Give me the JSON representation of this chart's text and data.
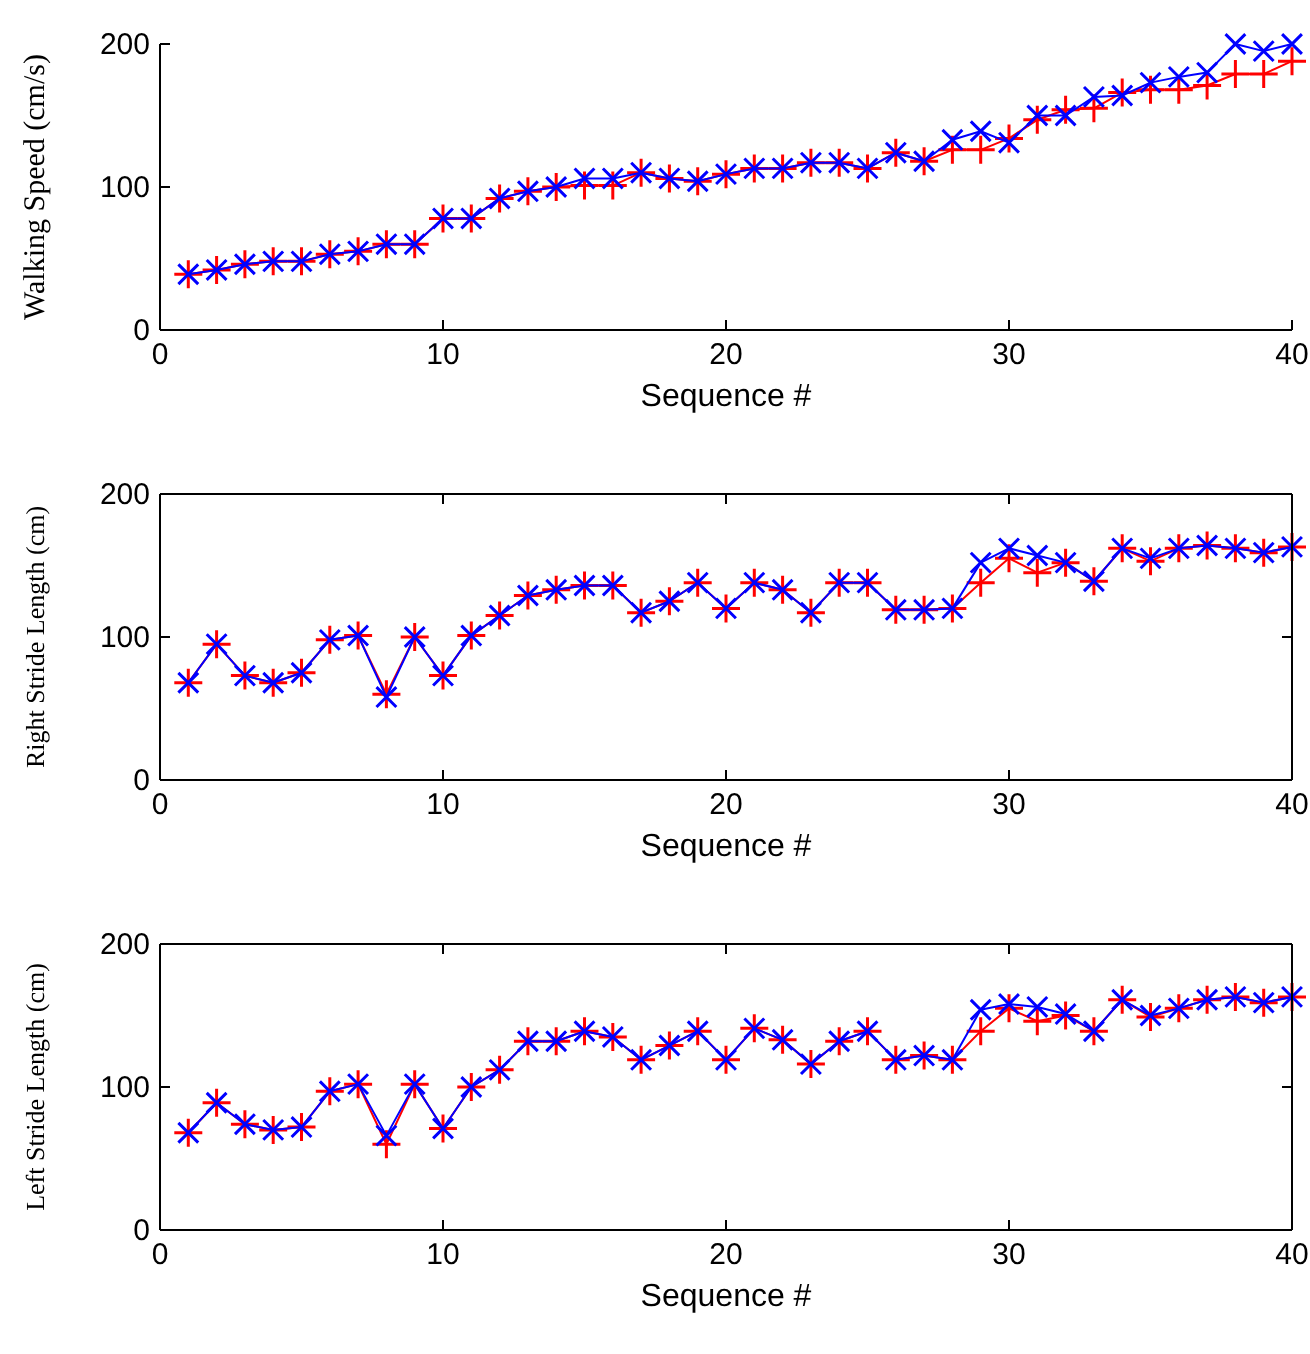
{
  "chart_data": [
    {
      "type": "line",
      "xlabel": "Sequence #",
      "ylabel": "Walking Speed (cm/s)",
      "x": [
        1,
        2,
        3,
        4,
        5,
        6,
        7,
        8,
        9,
        10,
        11,
        12,
        13,
        14,
        15,
        16,
        17,
        18,
        19,
        20,
        21,
        22,
        23,
        24,
        25,
        26,
        27,
        28,
        29,
        30,
        31,
        32,
        33,
        34,
        35,
        36,
        37,
        38,
        39,
        40
      ],
      "xlim": [
        0,
        40
      ],
      "xticks": [
        0,
        10,
        20,
        30,
        40
      ],
      "ylim": [
        0,
        200
      ],
      "yticks": [
        0,
        100,
        200
      ],
      "grid": false,
      "series": [
        {
          "color": "#ff0000",
          "marker": "cross",
          "values": [
            39,
            42,
            46,
            48,
            48,
            53,
            55,
            60,
            60,
            78,
            78,
            92,
            97,
            100,
            101,
            101,
            110,
            106,
            104,
            109,
            113,
            113,
            117,
            117,
            113,
            124,
            118,
            126,
            126,
            134,
            147,
            154,
            155,
            166,
            168,
            168,
            171,
            179,
            179,
            188
          ]
        },
        {
          "color": "#0000ff",
          "marker": "cross",
          "values": [
            39,
            42,
            46,
            48,
            48,
            53,
            55,
            60,
            60,
            78,
            78,
            92,
            97,
            100,
            106,
            106,
            110,
            106,
            104,
            109,
            113,
            113,
            117,
            117,
            113,
            124,
            118,
            133,
            139,
            131,
            150,
            150,
            163,
            164,
            173,
            177,
            180,
            200,
            195,
            200
          ]
        }
      ]
    },
    {
      "type": "line",
      "xlabel": "Sequence #",
      "ylabel": "Right Stride Length (cm)",
      "x": [
        1,
        2,
        3,
        4,
        5,
        6,
        7,
        8,
        9,
        10,
        11,
        12,
        13,
        14,
        15,
        16,
        17,
        18,
        19,
        20,
        21,
        22,
        23,
        24,
        25,
        26,
        27,
        28,
        29,
        30,
        31,
        32,
        33,
        34,
        35,
        36,
        37,
        38,
        39,
        40
      ],
      "xlim": [
        0,
        40
      ],
      "xticks": [
        0,
        10,
        20,
        30,
        40
      ],
      "ylim": [
        0,
        200
      ],
      "yticks": [
        0,
        100,
        200
      ],
      "grid": false,
      "series": [
        {
          "color": "#ff0000",
          "marker": "cross",
          "values": [
            68,
            95,
            73,
            68,
            75,
            98,
            101,
            60,
            100,
            73,
            101,
            115,
            129,
            133,
            136,
            136,
            117,
            125,
            138,
            120,
            138,
            133,
            117,
            138,
            138,
            119,
            119,
            120,
            138,
            155,
            145,
            152,
            139,
            162,
            153,
            162,
            164,
            162,
            159,
            163
          ]
        },
        {
          "color": "#0000ff",
          "marker": "cross",
          "values": [
            68,
            95,
            73,
            68,
            75,
            98,
            101,
            58,
            100,
            73,
            101,
            115,
            129,
            133,
            136,
            136,
            117,
            125,
            138,
            120,
            138,
            133,
            117,
            138,
            138,
            119,
            119,
            120,
            152,
            162,
            157,
            152,
            139,
            162,
            155,
            162,
            164,
            162,
            159,
            163
          ]
        }
      ]
    },
    {
      "type": "line",
      "xlabel": "Sequence #",
      "ylabel": "Left Stride Length (cm)",
      "x": [
        1,
        2,
        3,
        4,
        5,
        6,
        7,
        8,
        9,
        10,
        11,
        12,
        13,
        14,
        15,
        16,
        17,
        18,
        19,
        20,
        21,
        22,
        23,
        24,
        25,
        26,
        27,
        28,
        29,
        30,
        31,
        32,
        33,
        34,
        35,
        36,
        37,
        38,
        39,
        40
      ],
      "xlim": [
        0,
        40
      ],
      "xticks": [
        0,
        10,
        20,
        30,
        40
      ],
      "ylim": [
        0,
        200
      ],
      "yticks": [
        0,
        100,
        200
      ],
      "grid": false,
      "series": [
        {
          "color": "#ff0000",
          "marker": "cross",
          "values": [
            68,
            89,
            74,
            70,
            72,
            97,
            102,
            60,
            102,
            71,
            100,
            112,
            132,
            132,
            139,
            135,
            119,
            129,
            139,
            119,
            141,
            133,
            116,
            132,
            139,
            119,
            122,
            119,
            139,
            155,
            146,
            150,
            139,
            161,
            149,
            155,
            161,
            163,
            159,
            163
          ]
        },
        {
          "color": "#0000ff",
          "marker": "cross",
          "values": [
            68,
            89,
            74,
            70,
            72,
            97,
            102,
            66,
            102,
            71,
            100,
            112,
            132,
            132,
            139,
            135,
            119,
            129,
            139,
            119,
            141,
            133,
            116,
            132,
            139,
            119,
            122,
            119,
            154,
            158,
            156,
            151,
            139,
            161,
            150,
            155,
            161,
            163,
            159,
            163
          ]
        }
      ]
    }
  ]
}
